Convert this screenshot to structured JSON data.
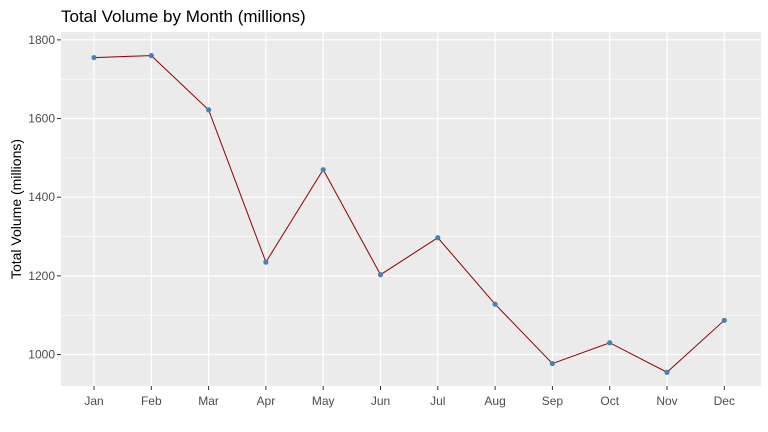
{
  "chart_data": {
    "type": "line",
    "title": "Total Volume by Month (millions)",
    "xlabel": "",
    "ylabel": "Total Volume (millions)",
    "categories": [
      "Jan",
      "Feb",
      "Mar",
      "Apr",
      "May",
      "Jun",
      "Jul",
      "Aug",
      "Sep",
      "Oct",
      "Nov",
      "Dec"
    ],
    "series": [
      {
        "values": [
          1755,
          1760,
          1622,
          1235,
          1470,
          1203,
          1297,
          1128,
          977,
          1030,
          955,
          1087
        ],
        "line_color": "#8b0000",
        "point_color": "#4682b4"
      }
    ],
    "ylim": [
      920,
      1820
    ],
    "yticks": [
      1000,
      1200,
      1400,
      1600,
      1800
    ],
    "grid": true,
    "legend": "none",
    "panel_background": "#ebebeb",
    "grid_color": "#ffffff"
  }
}
